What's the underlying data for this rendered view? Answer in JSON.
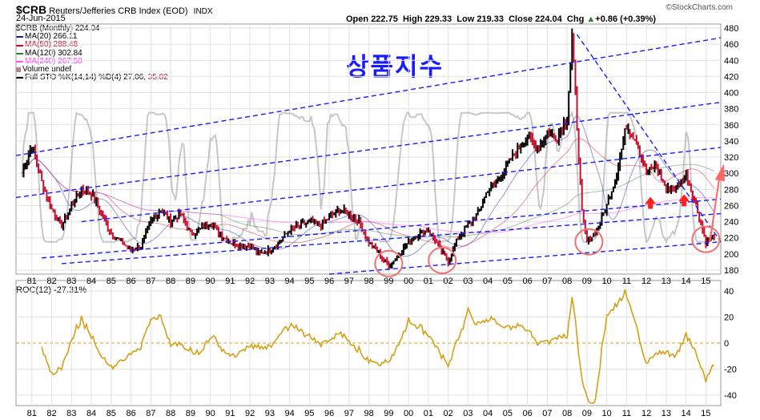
{
  "header": {
    "symbol": "$CRB",
    "title": "Reuters/Jefferies CRB Index (EOD)",
    "exchange": "INDX",
    "date": "24-Jun-2015",
    "open_label": "Open",
    "open": "222.75",
    "high_label": "High",
    "high": "229.33",
    "low_label": "Low",
    "low": "219.33",
    "close_label": "Close",
    "close": "224.04",
    "chg_label": "Chg",
    "chg": "+0.86 (+0.39%)",
    "chg_icon": "up-triangle-icon",
    "credit": "©StockCharts.com"
  },
  "legend": {
    "price": "$CRB (Monthly) 224.04",
    "ma20": "MA(20) 266.11",
    "ma50": "MA(50) 288.48",
    "ma120": "MA(120) 302.84",
    "ma240": "MA(240) 267.50",
    "volume": "Volume undef",
    "sto_prefix": "Full STO %K(14,14) %D(4) 27.06,",
    "sto_d": "35.02"
  },
  "annotation_title": "상품지수",
  "roc_label": "ROC(12) -27.31%",
  "colors": {
    "up_bar": "#000000",
    "down_bar": "#c8102e",
    "ma20": "#1a1a9c",
    "ma50": "#c8102e",
    "ma120": "#2e7d32",
    "ma240": "#ff55ff",
    "sto": "#9a9a9a",
    "trend": "#1a1aff",
    "roc": "#d4a017",
    "circle": "#f07070",
    "arrow": "#ff2020"
  },
  "chart_data": [
    {
      "type": "line",
      "title": "$CRB Reuters/Jefferies CRB Index (EOD)",
      "x_tick_labels": [
        "81",
        "82",
        "83",
        "84",
        "85",
        "86",
        "87",
        "88",
        "89",
        "90",
        "91",
        "92",
        "93",
        "94",
        "95",
        "96",
        "97",
        "98",
        "99",
        "00",
        "01",
        "02",
        "03",
        "04",
        "05",
        "06",
        "07",
        "08",
        "09",
        "10",
        "11",
        "12",
        "13",
        "14",
        "15"
      ],
      "y_tick_labels": [
        180,
        200,
        220,
        240,
        260,
        280,
        300,
        320,
        340,
        360,
        380,
        400,
        420,
        440,
        460,
        480
      ],
      "ylim": [
        175,
        485
      ],
      "series": [
        {
          "name": "$CRB (Monthly)",
          "x": [
            1980.5,
            1981,
            1981.5,
            1982,
            1982.5,
            1983,
            1983.5,
            1984,
            1984.5,
            1985,
            1985.5,
            1986,
            1986.5,
            1987,
            1987.5,
            1988,
            1988.5,
            1989,
            1989.5,
            1990,
            1990.5,
            1991,
            1991.5,
            1992,
            1992.5,
            1993,
            1993.5,
            1994,
            1994.5,
            1995,
            1995.5,
            1996,
            1996.5,
            1997,
            1997.5,
            1998,
            1998.5,
            1999,
            1999.5,
            2000,
            2000.5,
            2001,
            2001.5,
            2002,
            2002.5,
            2003,
            2003.5,
            2004,
            2004.5,
            2005,
            2005.5,
            2006,
            2006.5,
            2007,
            2007.5,
            2008,
            2008.25,
            2008.5,
            2008.75,
            2009,
            2009.5,
            2010,
            2010.5,
            2011,
            2011.5,
            2012,
            2012.5,
            2013,
            2013.5,
            2014,
            2014.5,
            2015,
            2015.5
          ],
          "values": [
            300,
            335,
            290,
            255,
            235,
            260,
            280,
            275,
            250,
            225,
            215,
            205,
            210,
            240,
            255,
            240,
            250,
            225,
            230,
            240,
            225,
            215,
            210,
            210,
            200,
            205,
            215,
            230,
            235,
            240,
            235,
            245,
            255,
            250,
            240,
            215,
            200,
            185,
            200,
            215,
            225,
            230,
            210,
            190,
            220,
            235,
            250,
            280,
            290,
            310,
            330,
            345,
            330,
            350,
            345,
            370,
            470,
            360,
            250,
            215,
            230,
            260,
            300,
            360,
            340,
            300,
            310,
            280,
            280,
            300,
            260,
            215,
            224
          ]
        },
        {
          "name": "ROC(12)",
          "x_tick_labels": [
            "81",
            "82",
            "83",
            "84",
            "85",
            "86",
            "87",
            "88",
            "89",
            "90",
            "91",
            "92",
            "93",
            "94",
            "95",
            "96",
            "97",
            "98",
            "99",
            "00",
            "01",
            "02",
            "03",
            "04",
            "05",
            "06",
            "07",
            "08",
            "09",
            "10",
            "11",
            "12",
            "13",
            "14",
            "15"
          ],
          "y_tick_labels": [
            -40,
            -20,
            0,
            20,
            40
          ],
          "ylim": [
            -48,
            48
          ],
          "last": -27.31
        }
      ]
    }
  ]
}
